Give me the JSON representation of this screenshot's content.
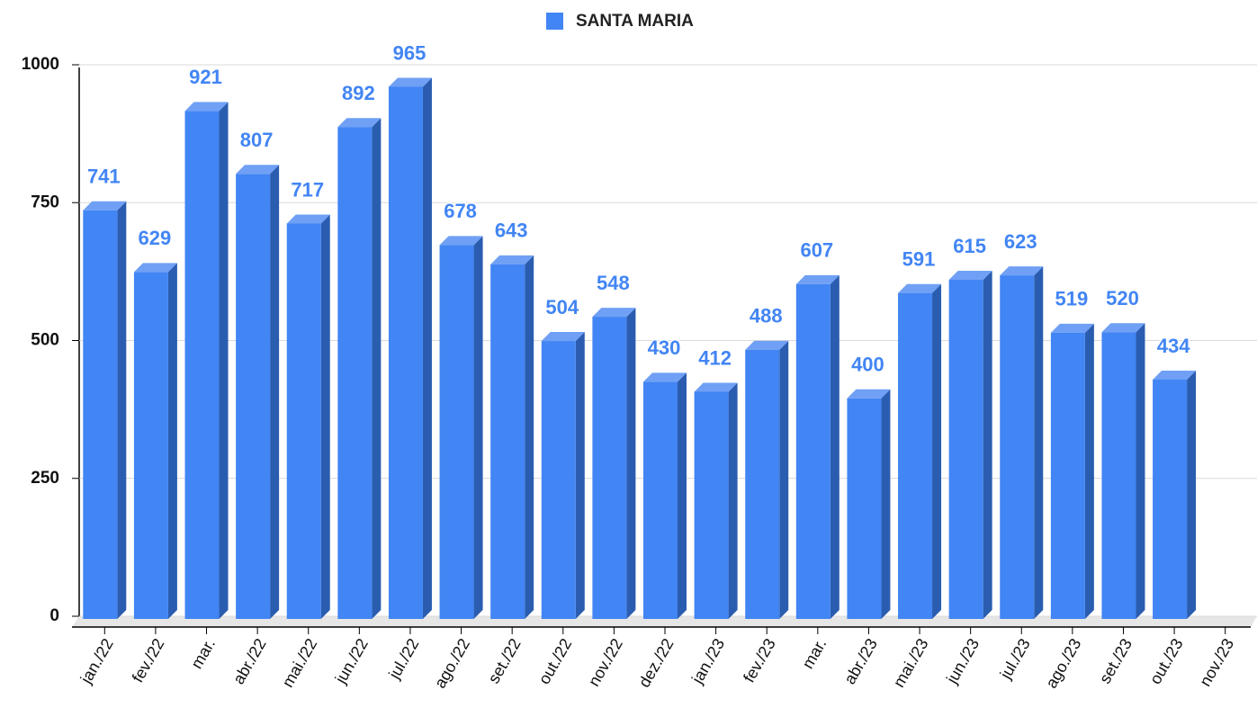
{
  "chart_data": {
    "type": "bar3d",
    "legend_position": "top",
    "series": [
      {
        "name": "SANTA MARIA",
        "color": "#4285f4",
        "values": [
          741,
          629,
          921,
          807,
          717,
          892,
          965,
          678,
          643,
          504,
          548,
          430,
          412,
          488,
          607,
          400,
          591,
          615,
          623,
          519,
          520,
          434,
          null
        ]
      }
    ],
    "categories": [
      "jan./22",
      "fev./22",
      "mar.",
      "abr./22",
      "mai./22",
      "jun./22",
      "jul./22",
      "ago./22",
      "set./22",
      "out./22",
      "nov./22",
      "dez./22",
      "jan./23",
      "fev./23",
      "mar.",
      "abr./23",
      "mai./23",
      "jun./23",
      "jul./23",
      "ago./23",
      "set./23",
      "out./23",
      "nov./23"
    ],
    "ylim": [
      0,
      1000
    ],
    "yticks": [
      0,
      250,
      500,
      750,
      1000
    ],
    "grid": true
  }
}
